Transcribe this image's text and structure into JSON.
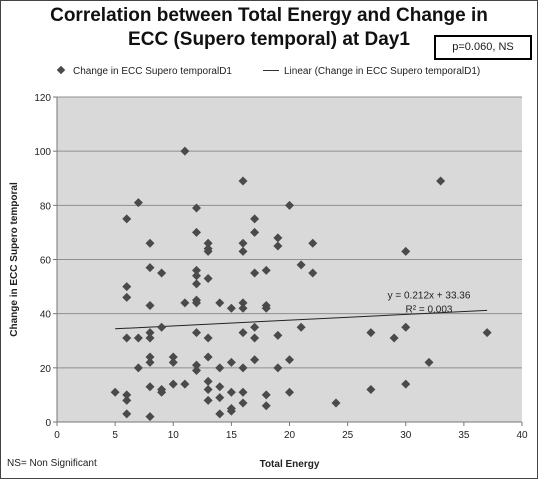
{
  "title_line1": "Correlation between Total Energy and Change in",
  "title_line2": "ECC (Supero temporal) at Day1",
  "p_value_text": "p=0.060, NS",
  "footnote": "NS= Non Significant",
  "legend": {
    "position": "top",
    "items": [
      {
        "label": "Change in ECC Supero temporalD1",
        "symbol": "diamond"
      },
      {
        "label": "Linear (Change in ECC Supero temporalD1)",
        "symbol": "line"
      }
    ]
  },
  "chart_data": {
    "type": "scatter",
    "xlabel": "Total Energy",
    "ylabel": "Change in ECC Supero temporal",
    "xlim": [
      0,
      40
    ],
    "ylim": [
      0,
      120
    ],
    "xticks": [
      0,
      5,
      10,
      15,
      20,
      25,
      30,
      35,
      40
    ],
    "yticks": [
      0,
      20,
      40,
      60,
      80,
      100,
      120
    ],
    "grid": "horizontal",
    "plot_background": "#d9d9d9",
    "series": [
      {
        "name": "Change in ECC Supero temporalD1",
        "marker": "diamond",
        "color": "#4a4a4a",
        "points": [
          [
            5,
            11
          ],
          [
            6,
            75
          ],
          [
            6,
            50
          ],
          [
            6,
            46
          ],
          [
            6,
            31
          ],
          [
            6,
            10
          ],
          [
            6,
            8
          ],
          [
            6,
            3
          ],
          [
            7,
            81
          ],
          [
            7,
            31
          ],
          [
            7,
            20
          ],
          [
            8,
            66
          ],
          [
            8,
            57
          ],
          [
            8,
            43
          ],
          [
            8,
            33
          ],
          [
            8,
            31
          ],
          [
            8,
            24
          ],
          [
            8,
            22
          ],
          [
            8,
            13
          ],
          [
            8,
            2
          ],
          [
            9,
            55
          ],
          [
            9,
            35
          ],
          [
            9,
            12
          ],
          [
            9,
            11
          ],
          [
            10,
            24
          ],
          [
            10,
            22
          ],
          [
            10,
            14
          ],
          [
            11,
            100
          ],
          [
            11,
            44
          ],
          [
            11,
            14
          ],
          [
            12,
            79
          ],
          [
            12,
            70
          ],
          [
            12,
            56
          ],
          [
            12,
            54
          ],
          [
            12,
            51
          ],
          [
            12,
            45
          ],
          [
            12,
            44
          ],
          [
            12,
            33
          ],
          [
            12,
            21
          ],
          [
            12,
            19
          ],
          [
            13,
            66
          ],
          [
            13,
            64
          ],
          [
            13,
            63
          ],
          [
            13,
            53
          ],
          [
            13,
            31
          ],
          [
            13,
            24
          ],
          [
            13,
            15
          ],
          [
            13,
            12
          ],
          [
            13,
            8
          ],
          [
            14,
            44
          ],
          [
            14,
            20
          ],
          [
            14,
            13
          ],
          [
            14,
            9
          ],
          [
            14,
            3
          ],
          [
            15,
            42
          ],
          [
            15,
            22
          ],
          [
            15,
            11
          ],
          [
            15,
            5
          ],
          [
            15,
            4
          ],
          [
            16,
            89
          ],
          [
            16,
            66
          ],
          [
            16,
            63
          ],
          [
            16,
            44
          ],
          [
            16,
            42
          ],
          [
            16,
            33
          ],
          [
            16,
            20
          ],
          [
            16,
            11
          ],
          [
            16,
            7
          ],
          [
            17,
            75
          ],
          [
            17,
            70
          ],
          [
            17,
            55
          ],
          [
            17,
            35
          ],
          [
            17,
            31
          ],
          [
            17,
            23
          ],
          [
            18,
            56
          ],
          [
            18,
            43
          ],
          [
            18,
            42
          ],
          [
            18,
            10
          ],
          [
            18,
            6
          ],
          [
            19,
            68
          ],
          [
            19,
            65
          ],
          [
            19,
            32
          ],
          [
            19,
            20
          ],
          [
            20,
            80
          ],
          [
            20,
            23
          ],
          [
            20,
            11
          ],
          [
            21,
            58
          ],
          [
            21,
            35
          ],
          [
            22,
            66
          ],
          [
            22,
            55
          ],
          [
            24,
            7
          ],
          [
            27,
            33
          ],
          [
            27,
            12
          ],
          [
            29,
            31
          ],
          [
            30,
            63
          ],
          [
            30,
            35
          ],
          [
            30,
            14
          ],
          [
            32,
            22
          ],
          [
            33,
            89
          ],
          [
            37,
            33
          ]
        ]
      },
      {
        "name": "Linear (Change in ECC Supero temporalD1)",
        "type": "line",
        "color": "#222222",
        "x": [
          5,
          37
        ],
        "y": [
          34.42,
          41.2
        ]
      }
    ],
    "annotations": [
      {
        "text": "y = 0.212x + 33.36",
        "at": [
          32,
          47
        ]
      },
      {
        "text": "R² = 0.003",
        "at": [
          32,
          42
        ]
      }
    ]
  }
}
